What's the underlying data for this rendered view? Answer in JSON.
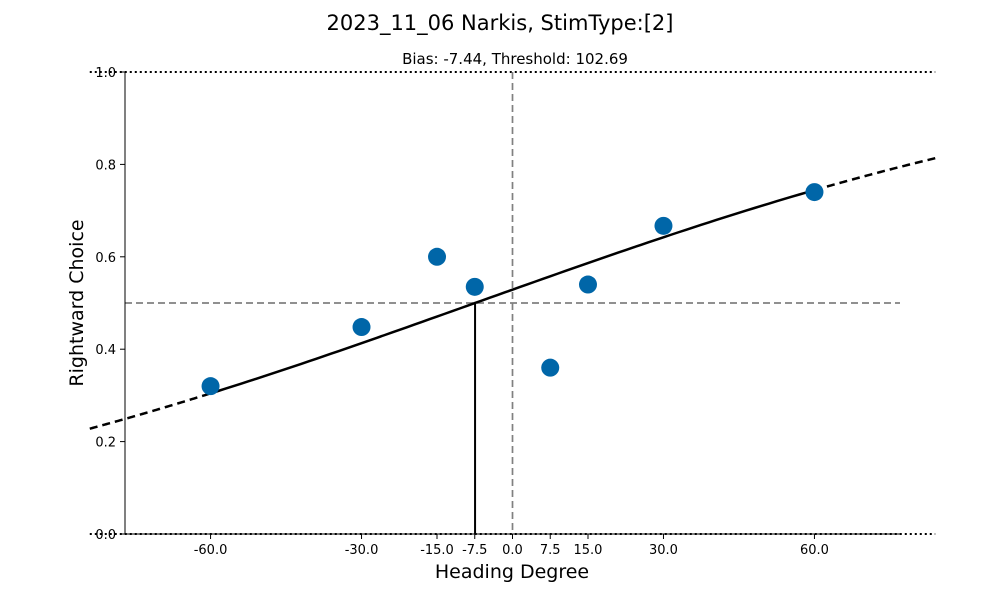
{
  "figure": {
    "suptitle": "2023_11_06 Narkis, StimType:[2]"
  },
  "chart_data": {
    "type": "scatter",
    "title": "Bias: -7.44, Threshold: 102.69",
    "xlabel": "Heading Degree",
    "ylabel": "Rightward Choice",
    "xlim": [
      -77,
      77
    ],
    "ylim": [
      0,
      1
    ],
    "x_ticks": [
      -60,
      -30,
      -15,
      -7.5,
      0,
      7.5,
      15,
      30,
      60
    ],
    "x_tick_labels": [
      "-60.0",
      "-30.0",
      "-15.0",
      "-7.5",
      "0.0",
      "7.5",
      "15.0",
      "30.0",
      "60.0"
    ],
    "y_ticks": [
      0,
      0.2,
      0.4,
      0.6,
      0.8,
      1.0
    ],
    "y_tick_labels": [
      "0.0",
      "0.2",
      "0.4",
      "0.6",
      "0.8",
      "1.0"
    ],
    "series": [
      {
        "x": [
          -60,
          -30,
          -15,
          -7.5,
          7.5,
          15,
          30,
          60
        ],
        "y": [
          0.32,
          0.448,
          0.6,
          0.535,
          0.36,
          0.54,
          0.667,
          0.74
        ]
      }
    ],
    "fit": {
      "bias": -7.44,
      "threshold": 102.69,
      "data_range": [
        -60,
        60
      ],
      "extrapolated_range": [
        -84,
        84
      ]
    },
    "reference_lines": {
      "chance_y": 0.5,
      "zero_x": 0,
      "bounds_y": [
        0,
        1
      ]
    },
    "grid": false,
    "colors": {
      "points": "#0066a8",
      "fit": "#000000",
      "reference": "#808080"
    }
  }
}
